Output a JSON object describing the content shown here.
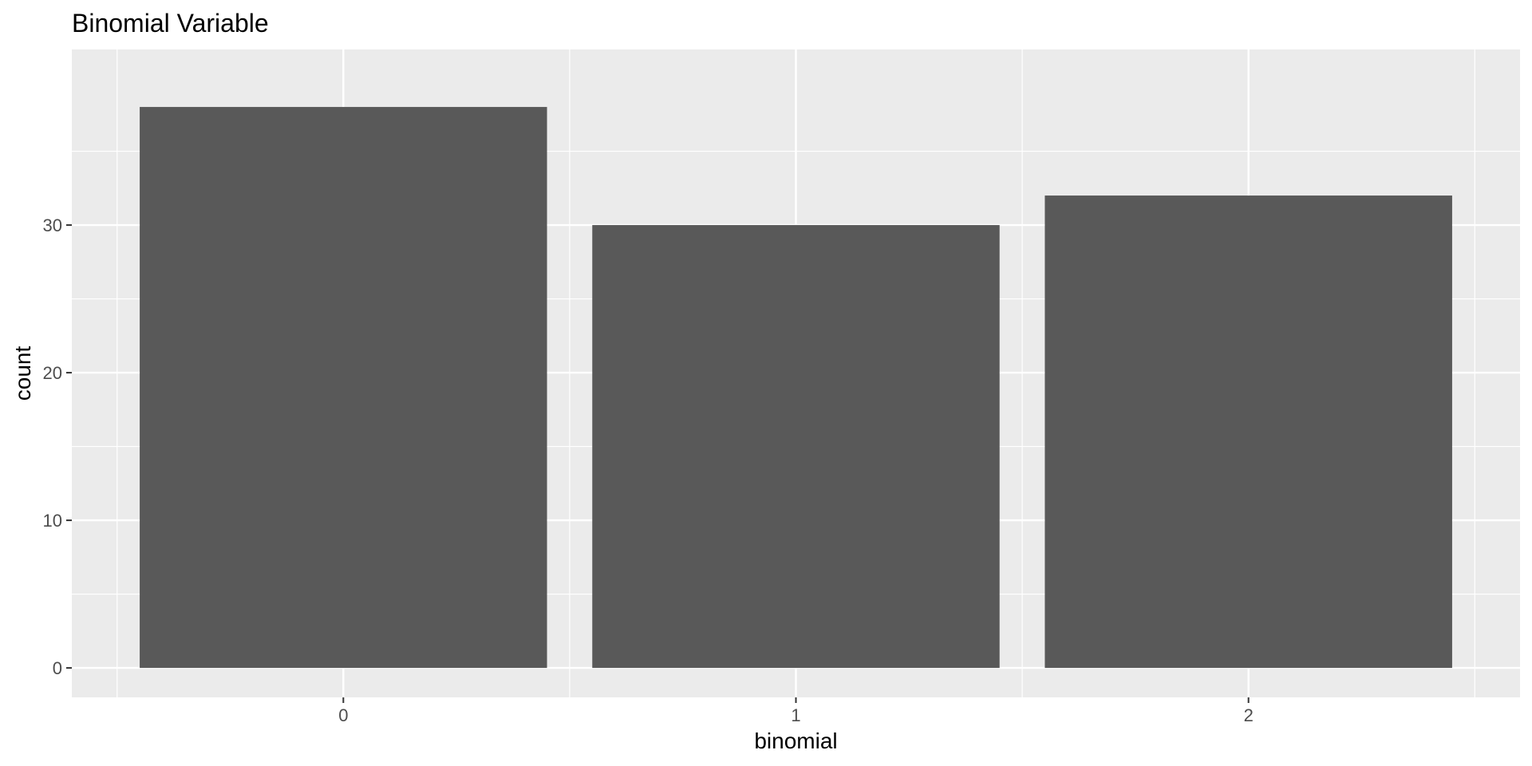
{
  "chart_data": {
    "type": "bar",
    "title": "Binomial Variable",
    "xlabel": "binomial",
    "ylabel": "count",
    "categories": [
      "0",
      "1",
      "2"
    ],
    "values": [
      38,
      30,
      32
    ],
    "ylim": [
      0,
      39.9
    ],
    "yticks": [
      0,
      10,
      20,
      30
    ],
    "ytick_labels": [
      "0",
      "10",
      "20",
      "30"
    ],
    "grid": true,
    "colors": {
      "panel_background": "#EBEBEB",
      "grid": "#FFFFFF",
      "bar_fill": "#595959",
      "tick": "#333333"
    }
  }
}
